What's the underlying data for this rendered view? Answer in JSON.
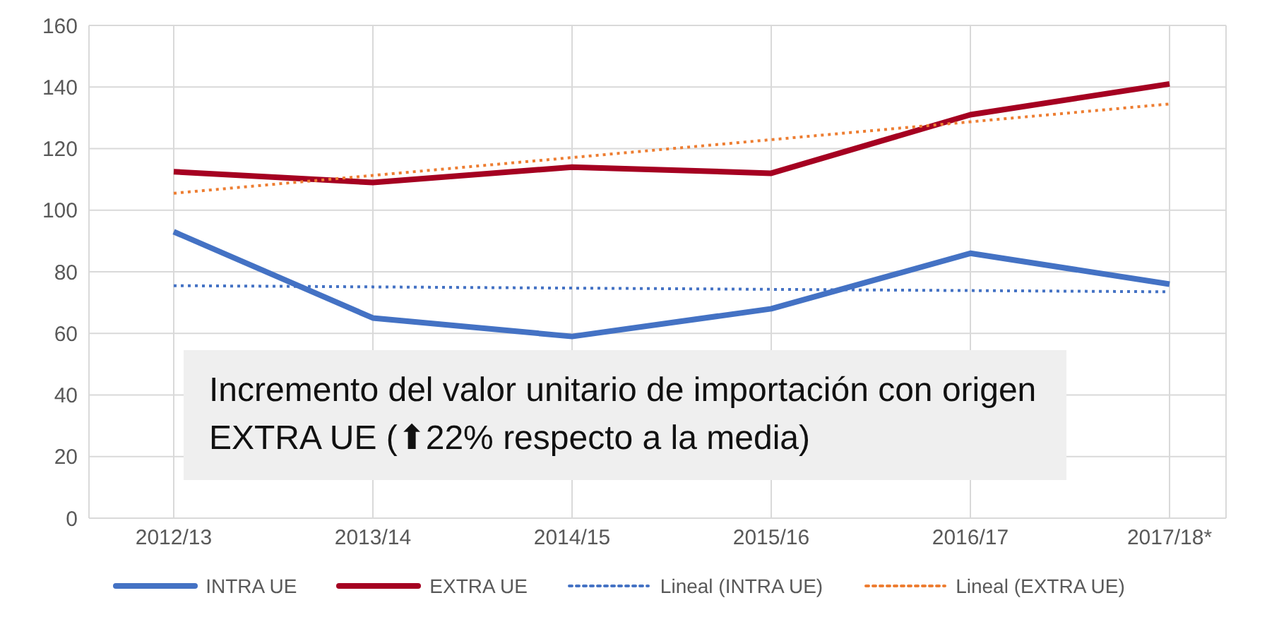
{
  "chart_data": {
    "type": "line",
    "categories": [
      "2012/13",
      "2013/14",
      "2014/15",
      "2015/16",
      "2016/17",
      "2017/18*"
    ],
    "series": [
      {
        "name": "INTRA UE",
        "color": "#4472c4",
        "values": [
          93,
          65,
          59,
          68,
          86,
          76
        ],
        "line_style": "solid"
      },
      {
        "name": "EXTRA UE",
        "color": "#a50021",
        "values": [
          112.5,
          109,
          114,
          112,
          131,
          141
        ],
        "line_style": "solid"
      },
      {
        "name": "Lineal (INTRA UE)",
        "color": "#4472c4",
        "values": [
          75.5,
          75.1,
          74.7,
          74.3,
          73.9,
          73.5
        ],
        "line_style": "dotted"
      },
      {
        "name": "Lineal (EXTRA UE)",
        "color": "#ed7d31",
        "values": [
          105.5,
          111.3,
          117.1,
          122.9,
          128.7,
          134.5
        ],
        "line_style": "dotted"
      }
    ],
    "ylim": [
      0,
      160
    ],
    "yticks": [
      0,
      20,
      40,
      60,
      80,
      100,
      120,
      140,
      160
    ],
    "grid": true,
    "legend": "bottom",
    "annotations": [
      "Incremento del valor unitario de importación con origen EXTRA UE (⬆22% respecto a la media)"
    ]
  }
}
